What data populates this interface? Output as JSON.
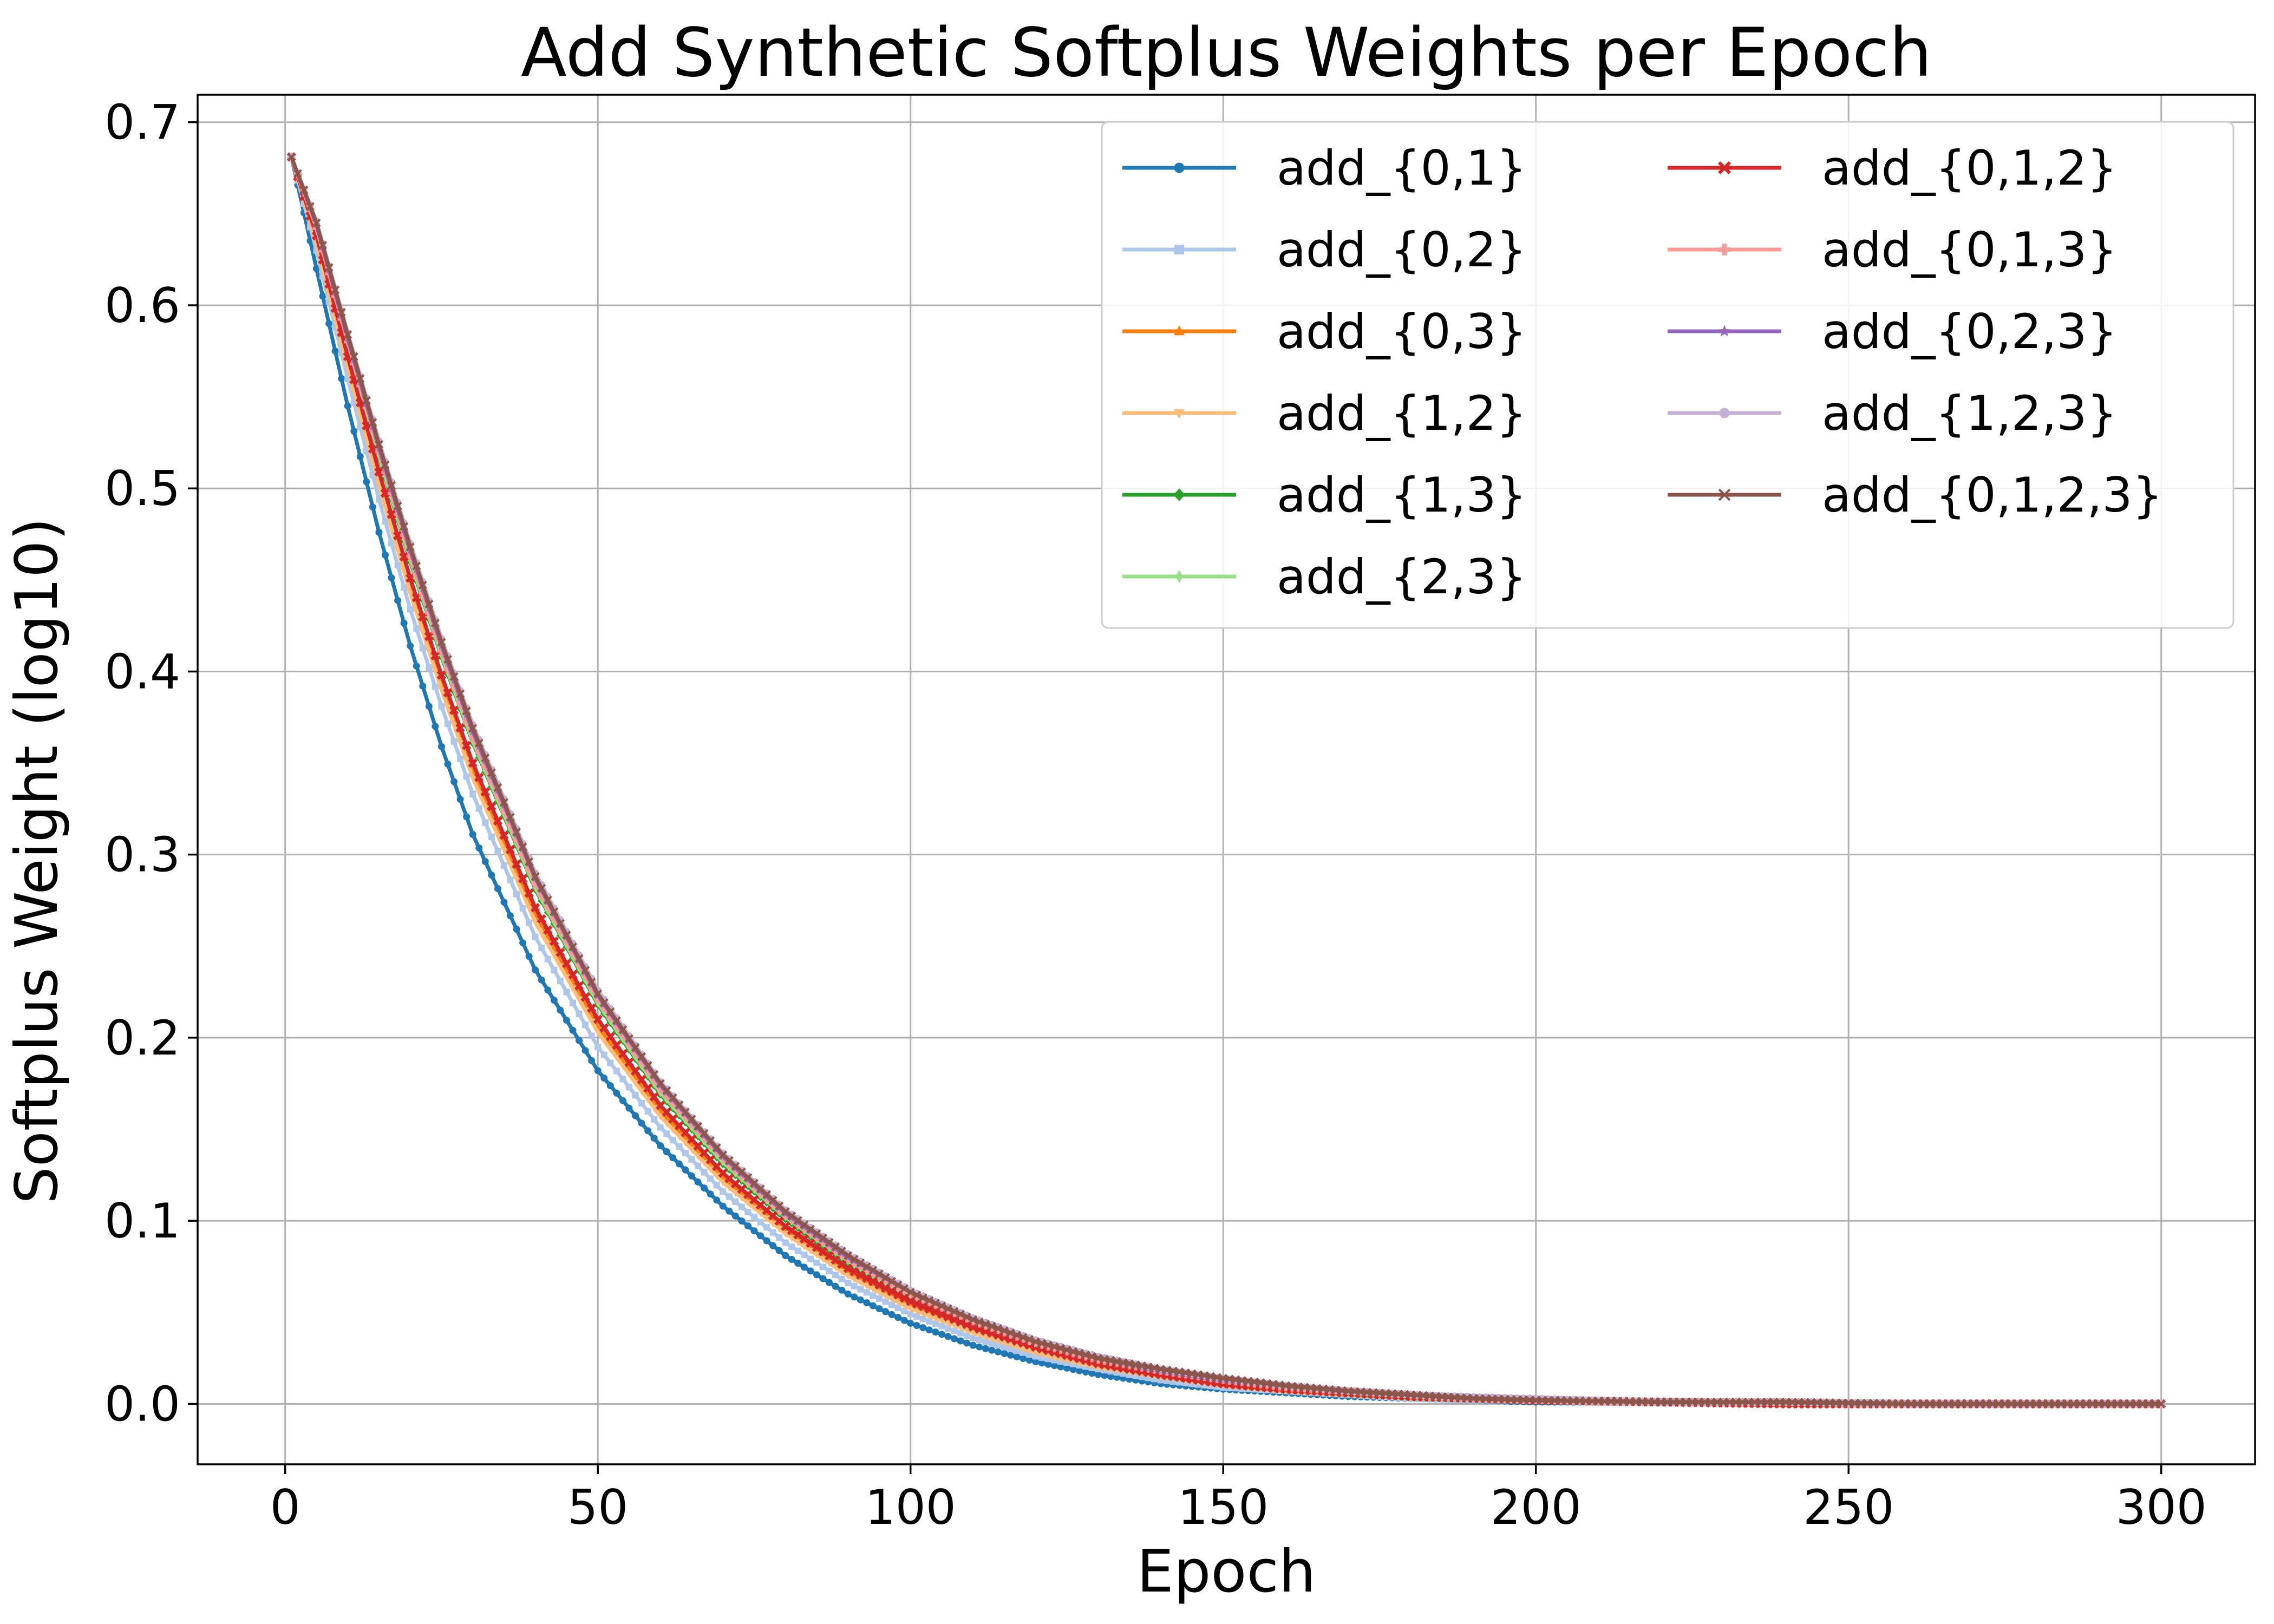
{
  "chart_data": {
    "type": "line",
    "title": "Add Synthetic Softplus Weights per Epoch",
    "xlabel": "Epoch",
    "ylabel": "Softplus Weight (log10)",
    "xlim": [
      -14,
      315
    ],
    "ylim": [
      -0.033,
      0.715
    ],
    "xticks": [
      0,
      50,
      100,
      150,
      200,
      250,
      300
    ],
    "yticks": [
      0.0,
      0.1,
      0.2,
      0.3,
      0.4,
      0.5,
      0.6,
      0.7
    ],
    "xtick_labels": [
      "0",
      "50",
      "100",
      "150",
      "200",
      "250",
      "300"
    ],
    "ytick_labels": [
      "0.0",
      "0.1",
      "0.2",
      "0.3",
      "0.4",
      "0.5",
      "0.6",
      "0.7"
    ],
    "grid": true,
    "legend": {
      "position": "upper right",
      "columns": 2
    },
    "x": [
      1,
      5,
      10,
      15,
      20,
      25,
      30,
      40,
      50,
      60,
      70,
      80,
      90,
      100,
      110,
      120,
      130,
      140,
      150,
      160,
      170,
      180,
      190,
      200,
      220,
      240,
      260,
      280,
      300
    ],
    "series": [
      {
        "name": "add_{0,1}",
        "color": "#1f77b4",
        "marker": "circle",
        "values": [
          0.681,
          0.62,
          0.545,
          0.476,
          0.414,
          0.359,
          0.311,
          0.237,
          0.182,
          0.141,
          0.108,
          0.081,
          0.06,
          0.044,
          0.032,
          0.023,
          0.016,
          0.011,
          0.008,
          0.006,
          0.004,
          0.003,
          0.002,
          0.001,
          0.001,
          0.0,
          0.0,
          0.0,
          0.0
        ]
      },
      {
        "name": "add_{0,2}",
        "color": "#aec7e8",
        "marker": "square",
        "values": [
          0.681,
          0.63,
          0.56,
          0.494,
          0.434,
          0.381,
          0.333,
          0.255,
          0.195,
          0.151,
          0.116,
          0.088,
          0.066,
          0.049,
          0.036,
          0.026,
          0.019,
          0.013,
          0.009,
          0.007,
          0.005,
          0.003,
          0.002,
          0.002,
          0.001,
          0.0,
          0.0,
          0.0,
          0.0
        ]
      },
      {
        "name": "add_{0,3}",
        "color": "#ff7f0e",
        "marker": "triangle-up",
        "values": [
          0.681,
          0.636,
          0.57,
          0.507,
          0.448,
          0.395,
          0.347,
          0.268,
          0.206,
          0.16,
          0.124,
          0.095,
          0.072,
          0.054,
          0.04,
          0.029,
          0.021,
          0.015,
          0.011,
          0.008,
          0.006,
          0.004,
          0.003,
          0.002,
          0.001,
          0.0,
          0.0,
          0.0,
          0.0
        ]
      },
      {
        "name": "add_{1,2}",
        "color": "#ffbb78",
        "marker": "triangle-down",
        "values": [
          0.681,
          0.634,
          0.566,
          0.502,
          0.443,
          0.39,
          0.342,
          0.263,
          0.203,
          0.157,
          0.121,
          0.093,
          0.07,
          0.052,
          0.039,
          0.028,
          0.02,
          0.015,
          0.01,
          0.007,
          0.005,
          0.004,
          0.003,
          0.002,
          0.001,
          0.0,
          0.0,
          0.0,
          0.0
        ]
      },
      {
        "name": "add_{1,3}",
        "color": "#2ca02c",
        "marker": "diamond",
        "values": [
          0.681,
          0.641,
          0.578,
          0.517,
          0.46,
          0.408,
          0.361,
          0.281,
          0.218,
          0.169,
          0.131,
          0.101,
          0.077,
          0.058,
          0.043,
          0.032,
          0.023,
          0.017,
          0.012,
          0.009,
          0.006,
          0.004,
          0.003,
          0.002,
          0.001,
          0.001,
          0.0,
          0.0,
          0.0
        ]
      },
      {
        "name": "add_{2,3}",
        "color": "#98df8a",
        "marker": "thin-diamond",
        "values": [
          0.681,
          0.642,
          0.579,
          0.518,
          0.461,
          0.409,
          0.362,
          0.282,
          0.219,
          0.17,
          0.132,
          0.102,
          0.078,
          0.059,
          0.044,
          0.033,
          0.024,
          0.017,
          0.012,
          0.009,
          0.006,
          0.004,
          0.003,
          0.002,
          0.001,
          0.001,
          0.0,
          0.0,
          0.0
        ]
      },
      {
        "name": "add_{0,1,2}",
        "color": "#d62728",
        "marker": "x-filled",
        "values": [
          0.681,
          0.638,
          0.572,
          0.509,
          0.451,
          0.398,
          0.35,
          0.271,
          0.21,
          0.163,
          0.126,
          0.097,
          0.074,
          0.056,
          0.042,
          0.031,
          0.022,
          0.016,
          0.011,
          0.008,
          0.006,
          0.004,
          0.003,
          0.002,
          0.001,
          0.0,
          0.0,
          0.0,
          0.0
        ]
      },
      {
        "name": "add_{0,1,3}",
        "color": "#ff9896",
        "marker": "plus-filled",
        "values": [
          0.681,
          0.642,
          0.58,
          0.52,
          0.463,
          0.411,
          0.364,
          0.284,
          0.221,
          0.172,
          0.134,
          0.103,
          0.079,
          0.06,
          0.045,
          0.033,
          0.024,
          0.018,
          0.013,
          0.009,
          0.007,
          0.005,
          0.003,
          0.002,
          0.001,
          0.001,
          0.0,
          0.0,
          0.0
        ]
      },
      {
        "name": "add_{0,2,3}",
        "color": "#9467bd",
        "marker": "star",
        "values": [
          0.681,
          0.644,
          0.582,
          0.522,
          0.466,
          0.414,
          0.367,
          0.287,
          0.223,
          0.174,
          0.135,
          0.104,
          0.08,
          0.061,
          0.046,
          0.034,
          0.025,
          0.018,
          0.013,
          0.01,
          0.007,
          0.005,
          0.003,
          0.002,
          0.001,
          0.001,
          0.0,
          0.0,
          0.0
        ]
      },
      {
        "name": "add_{1,2,3}",
        "color": "#c5b0d5",
        "marker": "hexagon",
        "values": [
          0.681,
          0.646,
          0.585,
          0.526,
          0.47,
          0.418,
          0.371,
          0.29,
          0.226,
          0.176,
          0.137,
          0.106,
          0.082,
          0.062,
          0.047,
          0.035,
          0.026,
          0.019,
          0.014,
          0.01,
          0.007,
          0.005,
          0.004,
          0.003,
          0.001,
          0.001,
          0.0,
          0.0,
          0.0
        ]
      },
      {
        "name": "add_{0,1,2,3}",
        "color": "#8c564b",
        "marker": "x",
        "values": [
          0.681,
          0.645,
          0.584,
          0.524,
          0.468,
          0.416,
          0.369,
          0.288,
          0.224,
          0.175,
          0.136,
          0.105,
          0.081,
          0.061,
          0.046,
          0.034,
          0.025,
          0.019,
          0.014,
          0.01,
          0.007,
          0.005,
          0.003,
          0.002,
          0.001,
          0.001,
          0.0,
          0.0,
          0.0
        ]
      }
    ]
  }
}
